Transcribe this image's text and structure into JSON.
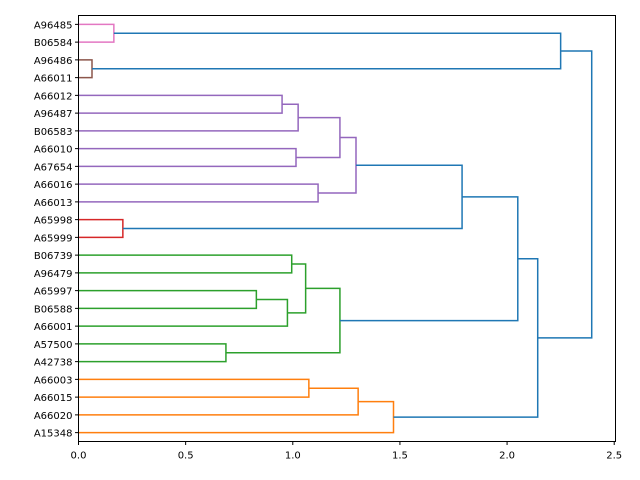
{
  "chart_data": {
    "type": "dendrogram",
    "title": "",
    "xlabel": "",
    "ylabel": "",
    "orientation": "left",
    "xlim": [
      0,
      2.506
    ],
    "xticks": [
      0.0,
      0.5,
      1.0,
      1.5,
      2.0,
      2.5
    ],
    "xtick_labels": [
      "0.0",
      "0.5",
      "1.0",
      "1.5",
      "2.0",
      "2.5"
    ],
    "leaves": [
      "A96485",
      "B06584",
      "A96486",
      "A66011",
      "A66012",
      "A96487",
      "B06583",
      "A66010",
      "A67654",
      "A66016",
      "A66013",
      "A65998",
      "A65999",
      "B06739",
      "A96479",
      "A65997",
      "B06588",
      "A66001",
      "A57500",
      "A42738",
      "A66003",
      "A66015",
      "A66020",
      "A15348"
    ],
    "colors": {
      "blue": "#1f77b4",
      "orange": "#ff7f0e",
      "green": "#2ca02c",
      "red": "#d62728",
      "purple": "#9467bd",
      "brown": "#8c564b",
      "pink": "#e377c2"
    },
    "merges": [
      [
        0,
        1,
        0.165,
        "pink"
      ],
      [
        2,
        3,
        0.063,
        "brown"
      ],
      [
        4,
        5,
        0.95,
        "purple"
      ],
      [
        26,
        6,
        1.025,
        "purple"
      ],
      [
        7,
        8,
        1.015,
        "purple"
      ],
      [
        27,
        28,
        1.22,
        "purple"
      ],
      [
        9,
        10,
        1.118,
        "purple"
      ],
      [
        29,
        30,
        1.295,
        "purple"
      ],
      [
        11,
        12,
        0.207,
        "red"
      ],
      [
        31,
        32,
        1.79,
        "blue"
      ],
      [
        13,
        14,
        0.995,
        "green"
      ],
      [
        15,
        16,
        0.83,
        "green"
      ],
      [
        35,
        17,
        0.975,
        "green"
      ],
      [
        34,
        36,
        1.06,
        "green"
      ],
      [
        18,
        19,
        0.688,
        "green"
      ],
      [
        37,
        38,
        1.22,
        "green"
      ],
      [
        33,
        39,
        2.05,
        "blue"
      ],
      [
        20,
        21,
        1.075,
        "orange"
      ],
      [
        41,
        22,
        1.305,
        "orange"
      ],
      [
        42,
        23,
        1.47,
        "orange"
      ],
      [
        40,
        43,
        2.143,
        "blue"
      ],
      [
        24,
        25,
        2.25,
        "blue"
      ],
      [
        45,
        44,
        2.395,
        "blue"
      ]
    ]
  }
}
